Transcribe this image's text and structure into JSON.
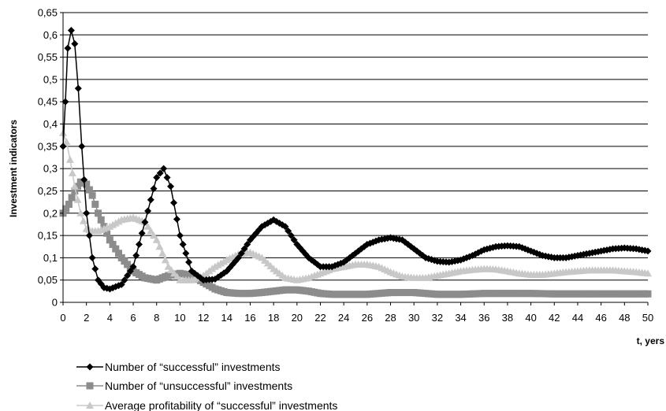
{
  "chart_data": {
    "type": "line",
    "xlabel": "t, yers",
    "ylabel": "Investment indicators",
    "xlim": [
      0,
      50
    ],
    "ylim": [
      0,
      0.65
    ],
    "xticks": [
      0,
      2,
      4,
      6,
      8,
      10,
      12,
      14,
      16,
      18,
      20,
      22,
      24,
      26,
      28,
      30,
      32,
      34,
      36,
      38,
      40,
      42,
      44,
      46,
      48,
      50
    ],
    "yticks": [
      0,
      0.05,
      0.1,
      0.15,
      0.2,
      0.25,
      0.3,
      0.35,
      0.4,
      0.45,
      0.5,
      0.55,
      0.6,
      0.65
    ],
    "ytick_labels": [
      "0",
      "0,05",
      "0,1",
      "0,15",
      "0,2",
      "0,25",
      "0,3",
      "0,35",
      "0,4",
      "0,45",
      "0,5",
      "0,55",
      "0,6",
      "0,65"
    ],
    "grid": "horizontal",
    "legend_position": "bottom-left",
    "series": [
      {
        "name": "Number of “successful” investments",
        "color": "#000000",
        "marker": "diamond",
        "points": [
          [
            0,
            0.35
          ],
          [
            0.2,
            0.45
          ],
          [
            0.4,
            0.57
          ],
          [
            0.7,
            0.61
          ],
          [
            1.0,
            0.58
          ],
          [
            1.3,
            0.48
          ],
          [
            1.6,
            0.35
          ],
          [
            2.0,
            0.2
          ],
          [
            2.5,
            0.1
          ],
          [
            3.0,
            0.05
          ],
          [
            3.5,
            0.033
          ],
          [
            4.0,
            0.03
          ],
          [
            5.0,
            0.04
          ],
          [
            6.0,
            0.08
          ],
          [
            7.0,
            0.18
          ],
          [
            8.0,
            0.28
          ],
          [
            8.6,
            0.3
          ],
          [
            9.2,
            0.26
          ],
          [
            10.0,
            0.15
          ],
          [
            11.0,
            0.07
          ],
          [
            12.0,
            0.05
          ],
          [
            13.0,
            0.052
          ],
          [
            14.0,
            0.07
          ],
          [
            15.0,
            0.1
          ],
          [
            16.0,
            0.14
          ],
          [
            17.0,
            0.17
          ],
          [
            18.0,
            0.185
          ],
          [
            19.0,
            0.17
          ],
          [
            20.0,
            0.13
          ],
          [
            21.0,
            0.1
          ],
          [
            22.0,
            0.08
          ],
          [
            23.0,
            0.08
          ],
          [
            24.0,
            0.09
          ],
          [
            25.0,
            0.11
          ],
          [
            26.0,
            0.13
          ],
          [
            27.0,
            0.14
          ],
          [
            28.0,
            0.145
          ],
          [
            29.0,
            0.14
          ],
          [
            30.0,
            0.12
          ],
          [
            31.0,
            0.1
          ],
          [
            32.0,
            0.092
          ],
          [
            33.0,
            0.09
          ],
          [
            34.0,
            0.095
          ],
          [
            35.0,
            0.105
          ],
          [
            36.0,
            0.118
          ],
          [
            37.0,
            0.125
          ],
          [
            38.0,
            0.127
          ],
          [
            39.0,
            0.125
          ],
          [
            40.0,
            0.115
          ],
          [
            41.0,
            0.105
          ],
          [
            42.0,
            0.1
          ],
          [
            43.0,
            0.1
          ],
          [
            44.0,
            0.105
          ],
          [
            45.0,
            0.11
          ],
          [
            46.0,
            0.115
          ],
          [
            47.0,
            0.12
          ],
          [
            48.0,
            0.122
          ],
          [
            49.0,
            0.12
          ],
          [
            50.0,
            0.115
          ]
        ]
      },
      {
        "name": "Number of “unsuccessful” investments",
        "color": "#8c8c8c",
        "marker": "square",
        "points": [
          [
            0,
            0.2
          ],
          [
            0.5,
            0.22
          ],
          [
            1.0,
            0.25
          ],
          [
            1.5,
            0.27
          ],
          [
            2.0,
            0.265
          ],
          [
            2.5,
            0.24
          ],
          [
            3.0,
            0.2
          ],
          [
            4.0,
            0.14
          ],
          [
            5.0,
            0.1
          ],
          [
            6.0,
            0.07
          ],
          [
            7.0,
            0.055
          ],
          [
            8.0,
            0.05
          ],
          [
            9.0,
            0.06
          ],
          [
            10.0,
            0.065
          ],
          [
            11.0,
            0.06
          ],
          [
            12.0,
            0.045
          ],
          [
            13.0,
            0.03
          ],
          [
            14.0,
            0.022
          ],
          [
            15.0,
            0.02
          ],
          [
            16.0,
            0.02
          ],
          [
            17.0,
            0.022
          ],
          [
            18.0,
            0.025
          ],
          [
            19.0,
            0.028
          ],
          [
            20.0,
            0.028
          ],
          [
            21.0,
            0.025
          ],
          [
            22.0,
            0.02
          ],
          [
            23.0,
            0.018
          ],
          [
            24.0,
            0.018
          ],
          [
            26.0,
            0.018
          ],
          [
            28.0,
            0.022
          ],
          [
            30.0,
            0.022
          ],
          [
            32.0,
            0.018
          ],
          [
            34.0,
            0.018
          ],
          [
            36.0,
            0.02
          ],
          [
            38.0,
            0.02
          ],
          [
            40.0,
            0.02
          ],
          [
            42.0,
            0.019
          ],
          [
            44.0,
            0.019
          ],
          [
            46.0,
            0.019
          ],
          [
            48.0,
            0.019
          ],
          [
            50.0,
            0.019
          ]
        ]
      },
      {
        "name": "Average profitability of  “successful” investments",
        "color": "#c8c8c8",
        "marker": "triangle",
        "points": [
          [
            0,
            0.38
          ],
          [
            0.3,
            0.36
          ],
          [
            0.6,
            0.32
          ],
          [
            1.0,
            0.26
          ],
          [
            1.5,
            0.2
          ],
          [
            2.0,
            0.165
          ],
          [
            2.5,
            0.16
          ],
          [
            3.0,
            0.16
          ],
          [
            4.0,
            0.17
          ],
          [
            5.0,
            0.185
          ],
          [
            6.0,
            0.19
          ],
          [
            7.0,
            0.18
          ],
          [
            8.0,
            0.14
          ],
          [
            9.0,
            0.08
          ],
          [
            10.0,
            0.05
          ],
          [
            11.0,
            0.05
          ],
          [
            12.0,
            0.06
          ],
          [
            13.0,
            0.08
          ],
          [
            14.0,
            0.095
          ],
          [
            15.0,
            0.108
          ],
          [
            16.0,
            0.112
          ],
          [
            17.0,
            0.1
          ],
          [
            18.0,
            0.075
          ],
          [
            19.0,
            0.055
          ],
          [
            20.0,
            0.05
          ],
          [
            21.0,
            0.055
          ],
          [
            22.0,
            0.065
          ],
          [
            23.0,
            0.075
          ],
          [
            24.0,
            0.08
          ],
          [
            25.0,
            0.085
          ],
          [
            26.0,
            0.085
          ],
          [
            27.0,
            0.08
          ],
          [
            28.0,
            0.068
          ],
          [
            29.0,
            0.058
          ],
          [
            30.0,
            0.055
          ],
          [
            31.0,
            0.055
          ],
          [
            32.0,
            0.06
          ],
          [
            33.0,
            0.065
          ],
          [
            34.0,
            0.07
          ],
          [
            35.0,
            0.073
          ],
          [
            36.0,
            0.075
          ],
          [
            37.0,
            0.074
          ],
          [
            38.0,
            0.07
          ],
          [
            39.0,
            0.065
          ],
          [
            40.0,
            0.062
          ],
          [
            41.0,
            0.062
          ],
          [
            42.0,
            0.065
          ],
          [
            43.0,
            0.068
          ],
          [
            44.0,
            0.07
          ],
          [
            45.0,
            0.072
          ],
          [
            46.0,
            0.072
          ],
          [
            47.0,
            0.072
          ],
          [
            48.0,
            0.07
          ],
          [
            49.0,
            0.068
          ],
          [
            50.0,
            0.065
          ]
        ]
      }
    ]
  }
}
